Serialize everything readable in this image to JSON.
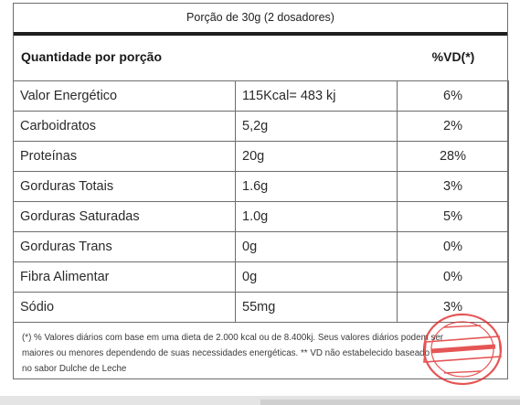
{
  "serving_size": "Porção de 30g (2 dosadores)",
  "header": {
    "left": "Quantidade por porção",
    "right": "%VD(*)"
  },
  "rows": [
    {
      "name": "Valor Energético",
      "amount": "115Kcal= 483 kj",
      "vd": "6%"
    },
    {
      "name": "Carboidratos",
      "amount": "5,2g",
      "vd": "2%"
    },
    {
      "name": "Proteínas",
      "amount": "20g",
      "vd": "28%"
    },
    {
      "name": "Gorduras Totais",
      "amount": "1.6g",
      "vd": "3%"
    },
    {
      "name": "Gorduras Saturadas",
      "amount": "1.0g",
      "vd": "5%"
    },
    {
      "name": "Gorduras Trans",
      "amount": "0g",
      "vd": "0%"
    },
    {
      "name": "Fibra Alimentar",
      "amount": "0g",
      "vd": "0%"
    },
    {
      "name": "Sódio",
      "amount": "55mg",
      "vd": "3%"
    }
  ],
  "footnote": {
    "line1": "(*) % Valores diários com base em uma dieta de 2.000 kcal ou de 8.400kj. Seus valores diários podem ser",
    "line2": "maiores ou menores dependendo de suas necessidades energéticas. ** VD não estabelecido baseado",
    "line3": "no sabor Dulche de Leche"
  },
  "stamp": {
    "color": "#e02b2b"
  }
}
